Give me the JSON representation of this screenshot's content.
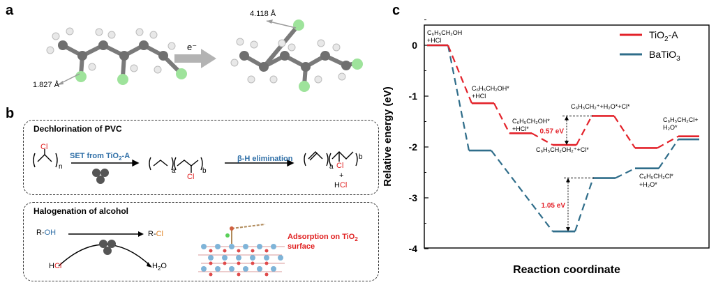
{
  "labels": {
    "a": "a",
    "b": "b",
    "c": "c"
  },
  "panel_a": {
    "dist_left": "1.827 Å",
    "dist_right": "4.118 Å",
    "arrow_label": "e⁻"
  },
  "panel_b": {
    "box1_title": "Dechlorination of PVC",
    "set_label_pre": "SET from TiO",
    "set_label_sub": "2",
    "set_label_post": "-A",
    "beta_label": "β-H elimination",
    "cl": "Cl",
    "n": "n",
    "a": "a",
    "b": "b",
    "plus": "+",
    "hcl_h": "H",
    "hcl_cl": "Cl",
    "box2_title": "Halogenation of alcohol",
    "r_oh_r": "R-",
    "r_oh_oh": "OH",
    "r_cl_r": "R-",
    "r_cl_cl": "Cl",
    "hcl2_h": "H",
    "hcl2_cl": "Cl",
    "h2o_pre": "H",
    "h2o_sub": "2",
    "h2o_post": "O",
    "adsorption_line1_pre": "Adsorption on TiO",
    "adsorption_line1_sub": "2",
    "adsorption_line2": "surface"
  },
  "chart_data": {
    "type": "line",
    "title": "",
    "xlabel": "Reaction coordinate",
    "ylabel": "Relative energy (eV)",
    "ylim": [
      -4,
      0.4
    ],
    "yticks": [
      0,
      -1,
      -2,
      -3,
      -4
    ],
    "series": [
      {
        "name": "TiO2-A",
        "legend_pre": "TiO",
        "legend_sub": "2",
        "legend_post": "-A",
        "color": "#e3222a",
        "levels": [
          0,
          -1.14,
          -1.73,
          -1.96,
          -1.39,
          -2.02,
          -1.79
        ]
      },
      {
        "name": "BaTiO3",
        "legend_pre": "BaTiO",
        "legend_sub": "3",
        "legend_post": "",
        "color": "#2f6d8a",
        "levels": [
          0,
          -2.07,
          -3.66,
          -2.61,
          -2.42,
          -1.85
        ]
      }
    ],
    "annotations": {
      "gap_red": "0.57 eV",
      "gap_blue": "1.05 eV"
    },
    "state_labels": {
      "s0": [
        "C₆H₅CH₂OH",
        "+HCl"
      ],
      "s1": [
        "C₆H₅CH₂OH*",
        "+HCl"
      ],
      "s2": [
        "C₆H₅CH₂OH*",
        "+HCl*"
      ],
      "s3": "C₆H₅CH₂OH₂⁺+Cl*",
      "s4": "C₆H₅CH₂⁺+H₂O*+Cl*",
      "s5": [
        "C₆H₅CH₂Cl+",
        "H₂O*"
      ],
      "s6": [
        "C₆H₅CH₂Cl*",
        "+H₂O*"
      ]
    }
  }
}
